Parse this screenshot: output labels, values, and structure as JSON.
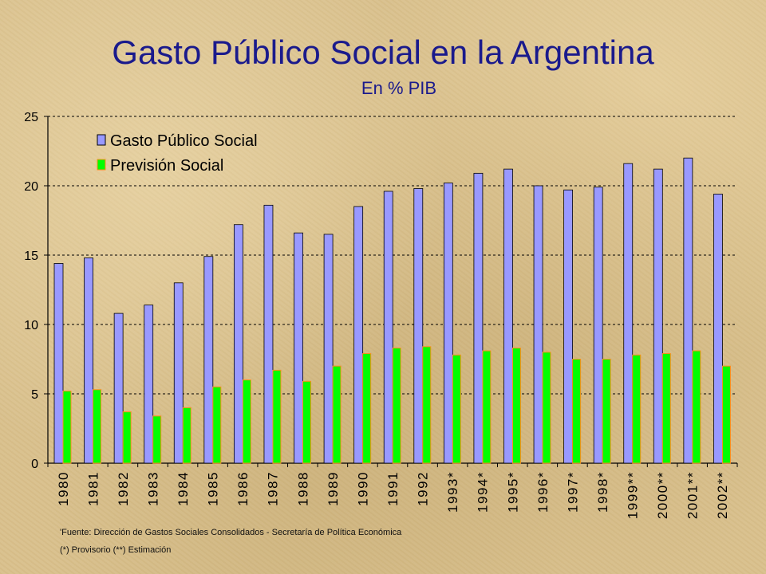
{
  "chart_data": {
    "type": "bar",
    "title": "Gasto Público Social en la Argentina",
    "subtitle": "En % PIB",
    "categories": [
      "1980",
      "1981",
      "1982",
      "1983",
      "1984",
      "1985",
      "1986",
      "1987",
      "1988",
      "1989",
      "1990",
      "1991",
      "1992",
      "1993*",
      "1994*",
      "1995*",
      "1996*",
      "1997*",
      "1998*",
      "1999**",
      "2000**",
      "2001**",
      "2002**"
    ],
    "series": [
      {
        "name": "Gasto Público Social",
        "color": "#9999ff",
        "values": [
          14.4,
          14.8,
          10.8,
          11.4,
          13.0,
          14.9,
          17.2,
          18.6,
          16.6,
          16.5,
          18.5,
          19.6,
          19.8,
          20.2,
          20.9,
          21.2,
          20.0,
          19.7,
          19.9,
          21.6,
          21.2,
          22.0,
          19.4
        ]
      },
      {
        "name": "Previsión Social",
        "color": "#00ff00",
        "values": [
          5.2,
          5.3,
          3.7,
          3.4,
          4.0,
          5.5,
          6.0,
          6.7,
          5.9,
          7.0,
          7.9,
          8.3,
          8.4,
          7.8,
          8.1,
          8.3,
          8.0,
          7.5,
          7.5,
          7.8,
          7.9,
          8.1,
          7.0
        ]
      }
    ],
    "ylim": [
      0,
      25
    ],
    "yticks": [
      0,
      5,
      10,
      15,
      20,
      25
    ],
    "grid": true,
    "legend_position": "top-left"
  },
  "footnotes": {
    "source": "'Fuente: Dirección de Gastos Sociales Consolidados - Secretaría de Política Económica",
    "notes": "(*) Provisorio (**) Estimación"
  }
}
